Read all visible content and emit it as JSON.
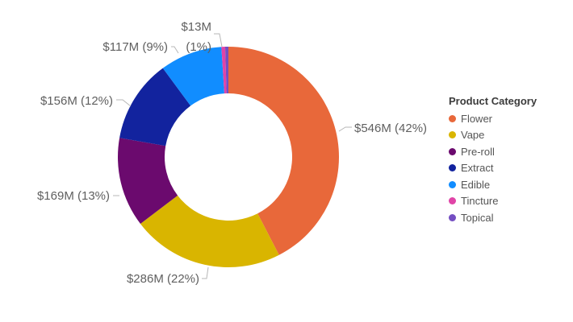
{
  "chart_data": {
    "type": "pie",
    "variant": "donut",
    "categories": [
      "Flower",
      "Vape",
      "Pre-roll",
      "Extract",
      "Edible",
      "Tincture",
      "Topical"
    ],
    "values": [
      546,
      286,
      169,
      156,
      117,
      7,
      6
    ],
    "percents": [
      42,
      22,
      13,
      12,
      9,
      0.5,
      0.5
    ],
    "labels": {
      "Flower": "$546M (42%)",
      "Vape": "$286M (22%)",
      "Pre-roll": "$169M (13%)",
      "Extract": "$156M (12%)",
      "Edible": "$117M (9%)",
      "Tincture_Topical_value": "$13M",
      "Tincture_Topical_pct": "(1%)"
    },
    "colors": [
      "#E8683A",
      "#D9B500",
      "#6B0A6E",
      "#12239E",
      "#118DFF",
      "#E044A7",
      "#744EC2"
    ],
    "legend": {
      "title": "Product Category",
      "placement": "right"
    },
    "title": "",
    "xlabel": "",
    "ylabel": ""
  }
}
